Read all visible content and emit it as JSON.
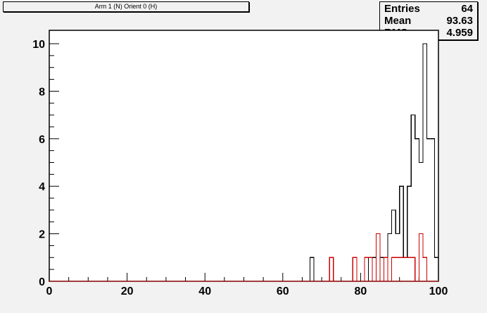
{
  "title": "Arm 1 (N) Orient 0 (H)",
  "stats": {
    "entries_label": "Entries",
    "entries_value": "64",
    "mean_label": "Mean",
    "mean_value": "93.63",
    "rms_label": "RMS",
    "rms_value": "4.959"
  },
  "chart_data": {
    "type": "histogram-step",
    "x_range": [
      0,
      100
    ],
    "y_range": [
      0,
      10.5
    ],
    "x_ticks": [
      0,
      20,
      40,
      60,
      80,
      100
    ],
    "y_ticks": [
      0,
      2,
      4,
      6,
      8,
      10
    ],
    "bin_width": 1,
    "series": [
      {
        "color": "#000000",
        "bins": [
          {
            "x": 67,
            "y": 1
          },
          {
            "x": 82,
            "y": 1
          },
          {
            "x": 83,
            "y": 1
          },
          {
            "x": 85,
            "y": 1
          },
          {
            "x": 86,
            "y": 1
          },
          {
            "x": 87,
            "y": 2
          },
          {
            "x": 88,
            "y": 3
          },
          {
            "x": 89,
            "y": 2
          },
          {
            "x": 90,
            "y": 4
          },
          {
            "x": 91,
            "y": 1
          },
          {
            "x": 92,
            "y": 4
          },
          {
            "x": 93,
            "y": 7
          },
          {
            "x": 94,
            "y": 6
          },
          {
            "x": 95,
            "y": 5
          },
          {
            "x": 96,
            "y": 10
          },
          {
            "x": 97,
            "y": 6
          },
          {
            "x": 98,
            "y": 6
          },
          {
            "x": 99,
            "y": 1
          },
          {
            "x": 100,
            "y": 10.5
          }
        ]
      },
      {
        "color": "#cc0000",
        "bins": [
          {
            "x": 72,
            "y": 1
          },
          {
            "x": 78,
            "y": 1
          },
          {
            "x": 81,
            "y": 1
          },
          {
            "x": 82,
            "y": 1
          },
          {
            "x": 84,
            "y": 2
          },
          {
            "x": 86,
            "y": 1
          },
          {
            "x": 88,
            "y": 1
          },
          {
            "x": 89,
            "y": 1
          },
          {
            "x": 90,
            "y": 1
          },
          {
            "x": 91,
            "y": 1
          },
          {
            "x": 92,
            "y": 1
          },
          {
            "x": 93,
            "y": 1
          },
          {
            "x": 95,
            "y": 2
          },
          {
            "x": 96,
            "y": 1
          }
        ]
      }
    ]
  }
}
